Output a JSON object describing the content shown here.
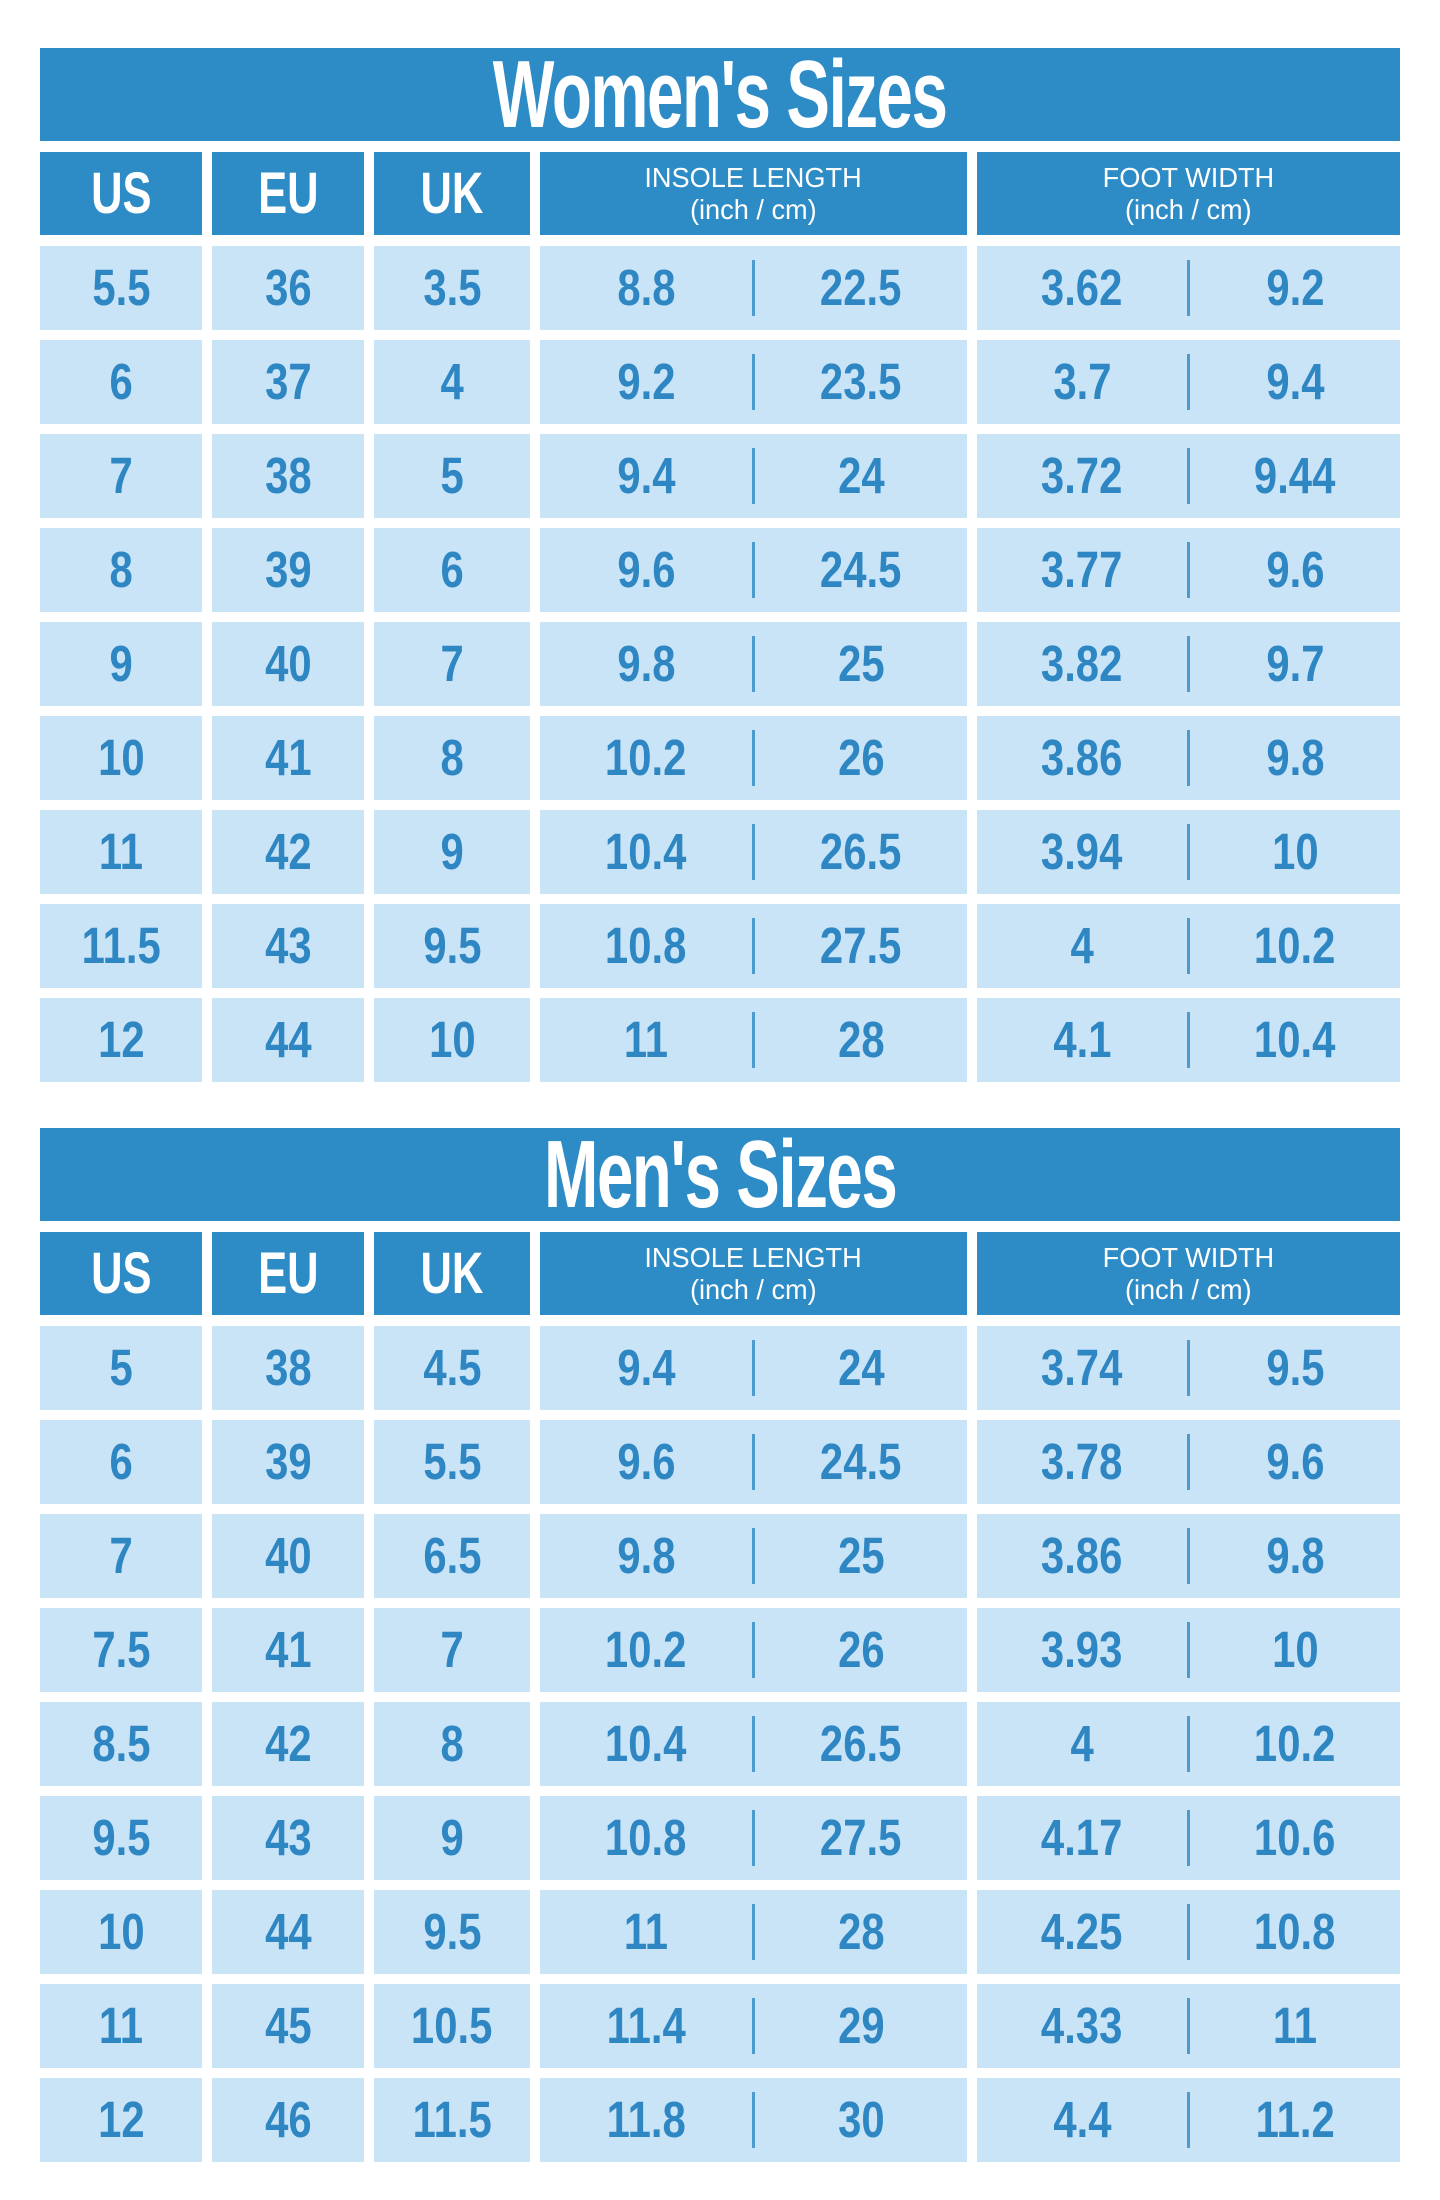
{
  "colors": {
    "header_blue": "#2d8bc6",
    "row_light_blue": "#cae4f7",
    "number_blue": "#2e86c3",
    "divider_blue": "#4d9bcd",
    "title_text": "#ffffff"
  },
  "chart_data": [
    {
      "type": "table",
      "title": "Women's Sizes",
      "columns": {
        "us": "US",
        "eu": "EU",
        "uk": "UK",
        "insole_line1": "INSOLE LENGTH",
        "insole_line2": "(inch / cm)",
        "foot_line1": "FOOT WIDTH",
        "foot_line2": "(inch / cm)"
      },
      "rows": [
        {
          "us": "5.5",
          "eu": "36",
          "uk": "3.5",
          "insole_inch": "8.8",
          "insole_cm": "22.5",
          "width_inch": "3.62",
          "width_cm": "9.2"
        },
        {
          "us": "6",
          "eu": "37",
          "uk": "4",
          "insole_inch": "9.2",
          "insole_cm": "23.5",
          "width_inch": "3.7",
          "width_cm": "9.4"
        },
        {
          "us": "7",
          "eu": "38",
          "uk": "5",
          "insole_inch": "9.4",
          "insole_cm": "24",
          "width_inch": "3.72",
          "width_cm": "9.44"
        },
        {
          "us": "8",
          "eu": "39",
          "uk": "6",
          "insole_inch": "9.6",
          "insole_cm": "24.5",
          "width_inch": "3.77",
          "width_cm": "9.6"
        },
        {
          "us": "9",
          "eu": "40",
          "uk": "7",
          "insole_inch": "9.8",
          "insole_cm": "25",
          "width_inch": "3.82",
          "width_cm": "9.7"
        },
        {
          "us": "10",
          "eu": "41",
          "uk": "8",
          "insole_inch": "10.2",
          "insole_cm": "26",
          "width_inch": "3.86",
          "width_cm": "9.8"
        },
        {
          "us": "11",
          "eu": "42",
          "uk": "9",
          "insole_inch": "10.4",
          "insole_cm": "26.5",
          "width_inch": "3.94",
          "width_cm": "10"
        },
        {
          "us": "11.5",
          "eu": "43",
          "uk": "9.5",
          "insole_inch": "10.8",
          "insole_cm": "27.5",
          "width_inch": "4",
          "width_cm": "10.2"
        },
        {
          "us": "12",
          "eu": "44",
          "uk": "10",
          "insole_inch": "11",
          "insole_cm": "28",
          "width_inch": "4.1",
          "width_cm": "10.4"
        }
      ]
    },
    {
      "type": "table",
      "title": "Men's Sizes",
      "columns": {
        "us": "US",
        "eu": "EU",
        "uk": "UK",
        "insole_line1": "INSOLE LENGTH",
        "insole_line2": "(inch / cm)",
        "foot_line1": "FOOT WIDTH",
        "foot_line2": "(inch / cm)"
      },
      "rows": [
        {
          "us": "5",
          "eu": "38",
          "uk": "4.5",
          "insole_inch": "9.4",
          "insole_cm": "24",
          "width_inch": "3.74",
          "width_cm": "9.5"
        },
        {
          "us": "6",
          "eu": "39",
          "uk": "5.5",
          "insole_inch": "9.6",
          "insole_cm": "24.5",
          "width_inch": "3.78",
          "width_cm": "9.6"
        },
        {
          "us": "7",
          "eu": "40",
          "uk": "6.5",
          "insole_inch": "9.8",
          "insole_cm": "25",
          "width_inch": "3.86",
          "width_cm": "9.8"
        },
        {
          "us": "7.5",
          "eu": "41",
          "uk": "7",
          "insole_inch": "10.2",
          "insole_cm": "26",
          "width_inch": "3.93",
          "width_cm": "10"
        },
        {
          "us": "8.5",
          "eu": "42",
          "uk": "8",
          "insole_inch": "10.4",
          "insole_cm": "26.5",
          "width_inch": "4",
          "width_cm": "10.2"
        },
        {
          "us": "9.5",
          "eu": "43",
          "uk": "9",
          "insole_inch": "10.8",
          "insole_cm": "27.5",
          "width_inch": "4.17",
          "width_cm": "10.6"
        },
        {
          "us": "10",
          "eu": "44",
          "uk": "9.5",
          "insole_inch": "11",
          "insole_cm": "28",
          "width_inch": "4.25",
          "width_cm": "10.8"
        },
        {
          "us": "11",
          "eu": "45",
          "uk": "10.5",
          "insole_inch": "11.4",
          "insole_cm": "29",
          "width_inch": "4.33",
          "width_cm": "11"
        },
        {
          "us": "12",
          "eu": "46",
          "uk": "11.5",
          "insole_inch": "11.8",
          "insole_cm": "30",
          "width_inch": "4.4",
          "width_cm": "11.2"
        }
      ]
    }
  ]
}
